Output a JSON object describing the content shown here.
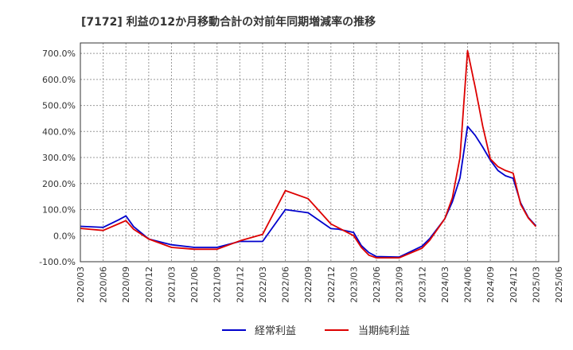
{
  "chart_data": {
    "type": "line",
    "title": "[7172]  利益の12か月移動合計の対前年同期増減率の推移",
    "xlabel": "",
    "ylabel": "",
    "ylim": [
      -100,
      740
    ],
    "yticks": [
      -100,
      0,
      100,
      200,
      300,
      400,
      500,
      600,
      700
    ],
    "ytick_labels": [
      "-100.0%",
      "0.0%",
      "100.0%",
      "200.0%",
      "300.0%",
      "400.0%",
      "500.0%",
      "600.0%",
      "700.0%"
    ],
    "xtick_labels": [
      "2020/03",
      "2020/06",
      "2020/09",
      "2020/12",
      "2021/03",
      "2021/06",
      "2021/09",
      "2021/12",
      "2022/03",
      "2022/06",
      "2022/09",
      "2022/12",
      "2023/03",
      "2023/06",
      "2023/09",
      "2023/12",
      "2024/03",
      "2024/06",
      "2024/09",
      "2024/12",
      "2025/03",
      "2025/06"
    ],
    "grid": true,
    "legend_position": "bottom-center",
    "x": [
      "2020/03",
      "2020/06",
      "2020/08",
      "2020/09",
      "2020/10",
      "2020/12",
      "2021/03",
      "2021/06",
      "2021/09",
      "2021/12",
      "2022/03",
      "2022/06",
      "2022/09",
      "2022/12",
      "2023/01",
      "2023/03",
      "2023/04",
      "2023/05",
      "2023/06",
      "2023/09",
      "2023/12",
      "2024/01",
      "2024/03",
      "2024/04",
      "2024/05",
      "2024/06",
      "2024/07",
      "2024/08",
      "2024/09",
      "2024/10",
      "2024/11",
      "2024/12",
      "2025/01",
      "2025/02",
      "2025/03"
    ],
    "series": [
      {
        "name": "経常利益",
        "color": "#0000cc",
        "values": [
          36,
          32,
          60,
          76,
          35,
          -13,
          -35,
          -45,
          -45,
          -22,
          -22,
          100,
          88,
          27,
          25,
          12,
          -38,
          -65,
          -80,
          -82,
          -40,
          -12,
          65,
          130,
          222,
          420,
          385,
          340,
          290,
          250,
          230,
          220,
          125,
          70,
          38
        ]
      },
      {
        "name": "当期純利益",
        "color": "#dd0000",
        "values": [
          28,
          20,
          45,
          58,
          25,
          -13,
          -45,
          -52,
          -52,
          -20,
          5,
          173,
          142,
          45,
          30,
          0,
          -45,
          -75,
          -85,
          -85,
          -48,
          -18,
          65,
          145,
          300,
          710,
          570,
          420,
          295,
          265,
          250,
          240,
          120,
          68,
          35
        ]
      }
    ]
  }
}
